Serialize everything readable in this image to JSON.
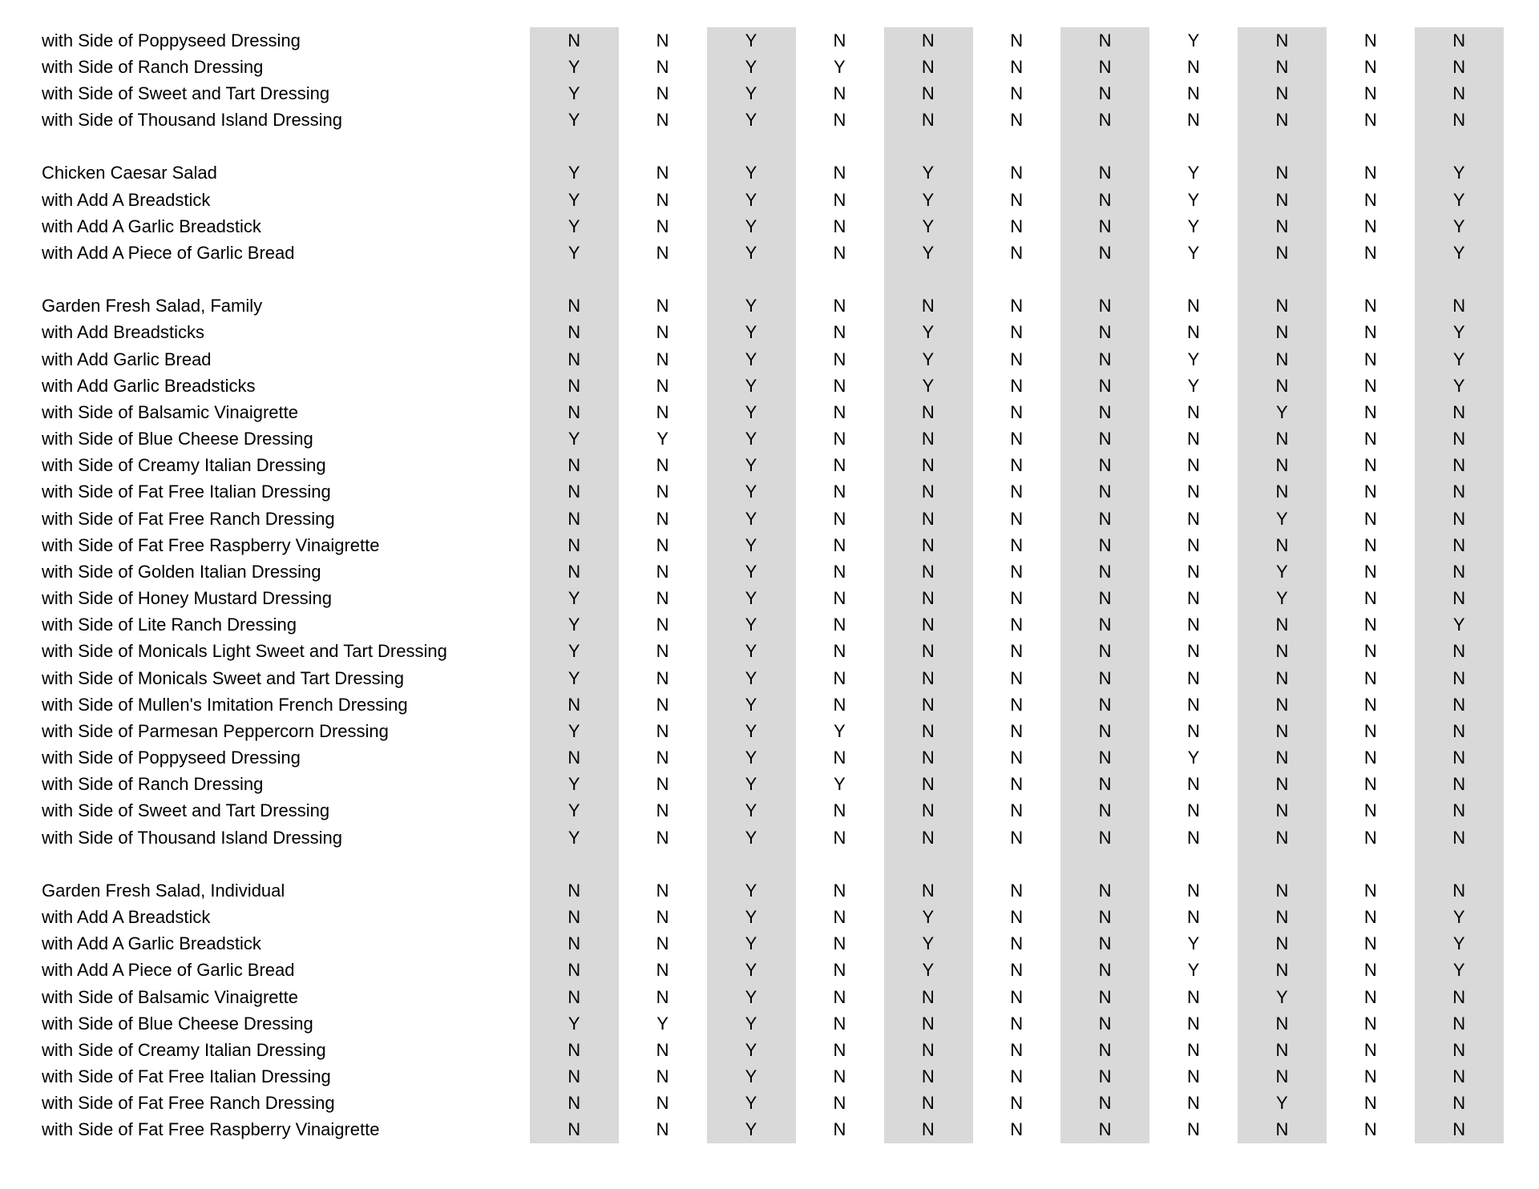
{
  "table": {
    "description_colors": {
      "stripe": "#d9d9d9",
      "text": "#000000",
      "background": "#ffffff"
    },
    "column_count": 11,
    "striped_columns": [
      0,
      2,
      4,
      6,
      8,
      10
    ],
    "rows": [
      {
        "label": "with Side of Poppyseed Dressing",
        "values": [
          "N",
          "N",
          "Y",
          "N",
          "N",
          "N",
          "N",
          "Y",
          "N",
          "N",
          "N"
        ]
      },
      {
        "label": "with Side of Ranch Dressing",
        "values": [
          "Y",
          "N",
          "Y",
          "Y",
          "N",
          "N",
          "N",
          "N",
          "N",
          "N",
          "N"
        ]
      },
      {
        "label": "with Side of Sweet and Tart Dressing",
        "values": [
          "Y",
          "N",
          "Y",
          "N",
          "N",
          "N",
          "N",
          "N",
          "N",
          "N",
          "N"
        ]
      },
      {
        "label": "with Side of Thousand Island Dressing",
        "values": [
          "Y",
          "N",
          "Y",
          "N",
          "N",
          "N",
          "N",
          "N",
          "N",
          "N",
          "N"
        ]
      },
      {
        "label": "",
        "values": [
          "",
          "",
          "",
          "",
          "",
          "",
          "",
          "",
          "",
          "",
          ""
        ]
      },
      {
        "label": "Chicken Caesar Salad",
        "values": [
          "Y",
          "N",
          "Y",
          "N",
          "Y",
          "N",
          "N",
          "Y",
          "N",
          "N",
          "Y"
        ]
      },
      {
        "label": "with Add A Breadstick",
        "values": [
          "Y",
          "N",
          "Y",
          "N",
          "Y",
          "N",
          "N",
          "Y",
          "N",
          "N",
          "Y"
        ]
      },
      {
        "label": "with Add A Garlic Breadstick",
        "values": [
          "Y",
          "N",
          "Y",
          "N",
          "Y",
          "N",
          "N",
          "Y",
          "N",
          "N",
          "Y"
        ]
      },
      {
        "label": "with Add A Piece of Garlic Bread",
        "values": [
          "Y",
          "N",
          "Y",
          "N",
          "Y",
          "N",
          "N",
          "Y",
          "N",
          "N",
          "Y"
        ]
      },
      {
        "label": "",
        "values": [
          "",
          "",
          "",
          "",
          "",
          "",
          "",
          "",
          "",
          "",
          ""
        ]
      },
      {
        "label": "Garden Fresh Salad, Family",
        "values": [
          "N",
          "N",
          "Y",
          "N",
          "N",
          "N",
          "N",
          "N",
          "N",
          "N",
          "N"
        ]
      },
      {
        "label": "with Add Breadsticks",
        "values": [
          "N",
          "N",
          "Y",
          "N",
          "Y",
          "N",
          "N",
          "N",
          "N",
          "N",
          "Y"
        ]
      },
      {
        "label": "with Add Garlic Bread",
        "values": [
          "N",
          "N",
          "Y",
          "N",
          "Y",
          "N",
          "N",
          "Y",
          "N",
          "N",
          "Y"
        ]
      },
      {
        "label": "with Add Garlic Breadsticks",
        "values": [
          "N",
          "N",
          "Y",
          "N",
          "Y",
          "N",
          "N",
          "Y",
          "N",
          "N",
          "Y"
        ]
      },
      {
        "label": "with Side of Balsamic Vinaigrette",
        "values": [
          "N",
          "N",
          "Y",
          "N",
          "N",
          "N",
          "N",
          "N",
          "Y",
          "N",
          "N"
        ]
      },
      {
        "label": "with Side of Blue Cheese Dressing",
        "values": [
          "Y",
          "Y",
          "Y",
          "N",
          "N",
          "N",
          "N",
          "N",
          "N",
          "N",
          "N"
        ]
      },
      {
        "label": "with Side of Creamy Italian Dressing",
        "values": [
          "N",
          "N",
          "Y",
          "N",
          "N",
          "N",
          "N",
          "N",
          "N",
          "N",
          "N"
        ]
      },
      {
        "label": "with Side of Fat Free Italian Dressing",
        "values": [
          "N",
          "N",
          "Y",
          "N",
          "N",
          "N",
          "N",
          "N",
          "N",
          "N",
          "N"
        ]
      },
      {
        "label": "with Side of Fat Free Ranch Dressing",
        "values": [
          "N",
          "N",
          "Y",
          "N",
          "N",
          "N",
          "N",
          "N",
          "Y",
          "N",
          "N"
        ]
      },
      {
        "label": "with Side of Fat Free Raspberry Vinaigrette",
        "values": [
          "N",
          "N",
          "Y",
          "N",
          "N",
          "N",
          "N",
          "N",
          "N",
          "N",
          "N"
        ]
      },
      {
        "label": "with Side of Golden Italian Dressing",
        "values": [
          "N",
          "N",
          "Y",
          "N",
          "N",
          "N",
          "N",
          "N",
          "Y",
          "N",
          "N"
        ]
      },
      {
        "label": "with Side of Honey Mustard Dressing",
        "values": [
          "Y",
          "N",
          "Y",
          "N",
          "N",
          "N",
          "N",
          "N",
          "Y",
          "N",
          "N"
        ]
      },
      {
        "label": "with Side of Lite Ranch Dressing",
        "values": [
          "Y",
          "N",
          "Y",
          "N",
          "N",
          "N",
          "N",
          "N",
          "N",
          "N",
          "Y"
        ]
      },
      {
        "label": "with Side of Monicals Light Sweet and Tart Dressing",
        "values": [
          "Y",
          "N",
          "Y",
          "N",
          "N",
          "N",
          "N",
          "N",
          "N",
          "N",
          "N"
        ]
      },
      {
        "label": "with Side of Monicals Sweet and Tart Dressing",
        "values": [
          "Y",
          "N",
          "Y",
          "N",
          "N",
          "N",
          "N",
          "N",
          "N",
          "N",
          "N"
        ]
      },
      {
        "label": "with Side of Mullen's Imitation French Dressing",
        "values": [
          "N",
          "N",
          "Y",
          "N",
          "N",
          "N",
          "N",
          "N",
          "N",
          "N",
          "N"
        ]
      },
      {
        "label": "with Side of Parmesan Peppercorn Dressing",
        "values": [
          "Y",
          "N",
          "Y",
          "Y",
          "N",
          "N",
          "N",
          "N",
          "N",
          "N",
          "N"
        ]
      },
      {
        "label": "with Side of Poppyseed Dressing",
        "values": [
          "N",
          "N",
          "Y",
          "N",
          "N",
          "N",
          "N",
          "Y",
          "N",
          "N",
          "N"
        ]
      },
      {
        "label": "with Side of Ranch Dressing",
        "values": [
          "Y",
          "N",
          "Y",
          "Y",
          "N",
          "N",
          "N",
          "N",
          "N",
          "N",
          "N"
        ]
      },
      {
        "label": "with Side of Sweet and Tart Dressing",
        "values": [
          "Y",
          "N",
          "Y",
          "N",
          "N",
          "N",
          "N",
          "N",
          "N",
          "N",
          "N"
        ]
      },
      {
        "label": "with Side of Thousand Island Dressing",
        "values": [
          "Y",
          "N",
          "Y",
          "N",
          "N",
          "N",
          "N",
          "N",
          "N",
          "N",
          "N"
        ]
      },
      {
        "label": "",
        "values": [
          "",
          "",
          "",
          "",
          "",
          "",
          "",
          "",
          "",
          "",
          ""
        ]
      },
      {
        "label": "Garden Fresh Salad, Individual",
        "values": [
          "N",
          "N",
          "Y",
          "N",
          "N",
          "N",
          "N",
          "N",
          "N",
          "N",
          "N"
        ]
      },
      {
        "label": "with Add A Breadstick",
        "values": [
          "N",
          "N",
          "Y",
          "N",
          "Y",
          "N",
          "N",
          "N",
          "N",
          "N",
          "Y"
        ]
      },
      {
        "label": "with Add A Garlic Breadstick",
        "values": [
          "N",
          "N",
          "Y",
          "N",
          "Y",
          "N",
          "N",
          "Y",
          "N",
          "N",
          "Y"
        ]
      },
      {
        "label": "with Add A Piece of Garlic Bread",
        "values": [
          "N",
          "N",
          "Y",
          "N",
          "Y",
          "N",
          "N",
          "Y",
          "N",
          "N",
          "Y"
        ]
      },
      {
        "label": "with Side of Balsamic Vinaigrette",
        "values": [
          "N",
          "N",
          "Y",
          "N",
          "N",
          "N",
          "N",
          "N",
          "Y",
          "N",
          "N"
        ]
      },
      {
        "label": "with Side of Blue Cheese Dressing",
        "values": [
          "Y",
          "Y",
          "Y",
          "N",
          "N",
          "N",
          "N",
          "N",
          "N",
          "N",
          "N"
        ]
      },
      {
        "label": "with Side of Creamy Italian Dressing",
        "values": [
          "N",
          "N",
          "Y",
          "N",
          "N",
          "N",
          "N",
          "N",
          "N",
          "N",
          "N"
        ]
      },
      {
        "label": "with Side of Fat Free Italian Dressing",
        "values": [
          "N",
          "N",
          "Y",
          "N",
          "N",
          "N",
          "N",
          "N",
          "N",
          "N",
          "N"
        ]
      },
      {
        "label": "with Side of Fat Free Ranch Dressing",
        "values": [
          "N",
          "N",
          "Y",
          "N",
          "N",
          "N",
          "N",
          "N",
          "Y",
          "N",
          "N"
        ]
      },
      {
        "label": "with Side of Fat Free Raspberry Vinaigrette",
        "values": [
          "N",
          "N",
          "Y",
          "N",
          "N",
          "N",
          "N",
          "N",
          "N",
          "N",
          "N"
        ]
      }
    ]
  }
}
